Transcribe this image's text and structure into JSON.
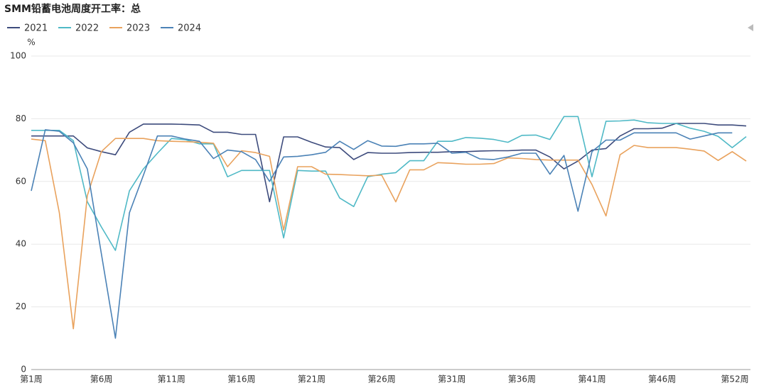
{
  "chart_data": {
    "type": "line",
    "title": "SMM铅蓄电池周度开工率：总",
    "y_unit": "%",
    "categories": [
      "第1周",
      null,
      null,
      null,
      null,
      "第6周",
      null,
      null,
      null,
      null,
      "第11周",
      null,
      null,
      null,
      null,
      "第16周",
      null,
      null,
      null,
      null,
      "第21周",
      null,
      null,
      null,
      null,
      "第26周",
      null,
      null,
      null,
      null,
      "第31周",
      null,
      null,
      null,
      null,
      "第36周",
      null,
      null,
      null,
      null,
      "第41周",
      null,
      null,
      null,
      null,
      "第46周",
      null,
      null,
      null,
      null,
      null,
      "第52周"
    ],
    "series": [
      {
        "name": "2021",
        "color": "#3d4b7c",
        "values": [
          74.5,
          74.5,
          74.5,
          74.5,
          70.7,
          69.5,
          68.5,
          75.7,
          78.3,
          78.3,
          78.3,
          78.2,
          78,
          75.7,
          75.7,
          75,
          75,
          53.5,
          74.2,
          74.2,
          72.5,
          71,
          70.8,
          67,
          69.2,
          69,
          69,
          69.2,
          69.3,
          69.3,
          69.5,
          69.5,
          69.7,
          69.8,
          69.8,
          70,
          70,
          67.8,
          64,
          66.5,
          70,
          70.5,
          74.5,
          76.8,
          76.8,
          77,
          78.5,
          78.5,
          78.5,
          78,
          78,
          77.7
        ]
      },
      {
        "name": "2022",
        "color": "#4fb9c6",
        "values": [
          76.3,
          76.3,
          76.3,
          73,
          53.5,
          45.5,
          38,
          57,
          64,
          69,
          73.7,
          73.3,
          72,
          72,
          61.5,
          63.5,
          63.5,
          63.5,
          42,
          63.5,
          63.3,
          63.3,
          54.7,
          52,
          61.5,
          62.3,
          62.8,
          66.6,
          66.6,
          72.8,
          72.8,
          74,
          73.8,
          73.4,
          72.5,
          74.7,
          74.8,
          73.4,
          80.7,
          80.7,
          61.5,
          79.2,
          79.3,
          79.6,
          78.7,
          78.5,
          78.5,
          77,
          76,
          74.4,
          70.8,
          74.3
        ]
      },
      {
        "name": "2023",
        "color": "#e9a25d",
        "values": [
          73.5,
          73,
          50,
          13,
          55.5,
          69.5,
          73.7,
          73.7,
          73.7,
          73,
          72.8,
          72.7,
          72.5,
          72.2,
          64.7,
          69.8,
          69.2,
          68,
          44.5,
          64.7,
          64.7,
          62.3,
          62.2,
          62,
          61.8,
          62,
          53.5,
          63.7,
          63.7,
          66,
          65.8,
          65.5,
          65.5,
          65.7,
          67.5,
          67.3,
          67,
          66.8,
          66.8,
          66.8,
          59,
          49,
          68.5,
          71.5,
          70.8,
          70.8,
          70.8,
          70.3,
          69.7,
          66.7,
          69.5,
          66.5
        ]
      },
      {
        "name": "2024",
        "color": "#4b82b6",
        "values": [
          57,
          76.5,
          76,
          72.3,
          64,
          37,
          10,
          50,
          62,
          74.5,
          74.5,
          73.5,
          72.8,
          67.3,
          70,
          69.5,
          67,
          60,
          67.8,
          68,
          68.5,
          69.3,
          72.8,
          70.2,
          73,
          71.3,
          71.2,
          72,
          72,
          72.2,
          69,
          69.3,
          67.2,
          67,
          67.8,
          69,
          69,
          62.3,
          68.3,
          50.5,
          69.5,
          73.2,
          73.2,
          75.5,
          75.5,
          75.5,
          75.5,
          73.5,
          74.5,
          75.5,
          75.5,
          null
        ]
      }
    ],
    "ylim": [
      0,
      100
    ],
    "yticks": [
      0,
      20,
      40,
      60,
      80,
      100
    ],
    "grid": true
  }
}
